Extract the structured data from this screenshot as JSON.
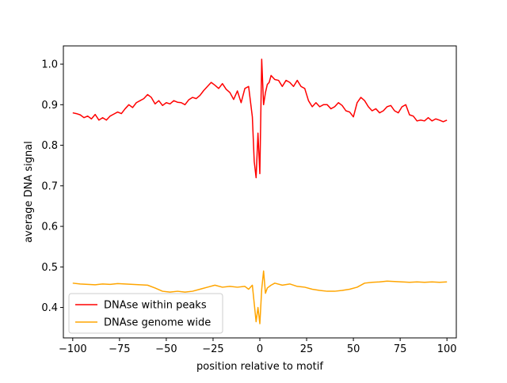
{
  "chart_data": {
    "type": "line",
    "title": "",
    "xlabel": "position relative to motif",
    "ylabel": "average DNA signal",
    "xlim": [
      -105,
      105
    ],
    "ylim": [
      0.325,
      1.045
    ],
    "xticks": [
      -100,
      -75,
      -50,
      -25,
      0,
      25,
      50,
      75,
      100
    ],
    "xtick_labels": [
      "−100",
      "−75",
      "−50",
      "−25",
      "0",
      "25",
      "50",
      "75",
      "100"
    ],
    "yticks": [
      0.4,
      0.5,
      0.6,
      0.7,
      0.8,
      0.9,
      1.0
    ],
    "ytick_labels": [
      "0.4",
      "0.5",
      "0.6",
      "0.7",
      "0.8",
      "0.9",
      "1.0"
    ],
    "grid": false,
    "legend_position": "lower-left",
    "series": [
      {
        "name": "DNAse within peaks",
        "color": "#ff0000",
        "x": [
          -100,
          -98,
          -96,
          -94,
          -92,
          -90,
          -88,
          -86,
          -84,
          -82,
          -80,
          -78,
          -76,
          -74,
          -72,
          -70,
          -68,
          -66,
          -64,
          -62,
          -60,
          -58,
          -56,
          -54,
          -52,
          -50,
          -48,
          -46,
          -44,
          -42,
          -40,
          -38,
          -36,
          -34,
          -32,
          -30,
          -28,
          -26,
          -24,
          -22,
          -20,
          -18,
          -16,
          -14,
          -12,
          -10,
          -8,
          -6,
          -4,
          -3,
          -2,
          -1,
          0,
          1,
          2,
          3,
          4,
          5,
          6,
          8,
          10,
          12,
          14,
          16,
          18,
          20,
          22,
          24,
          26,
          28,
          30,
          32,
          34,
          36,
          38,
          40,
          42,
          44,
          46,
          48,
          50,
          52,
          54,
          56,
          58,
          60,
          62,
          64,
          66,
          68,
          70,
          72,
          74,
          76,
          78,
          80,
          82,
          84,
          86,
          88,
          90,
          92,
          94,
          96,
          98,
          100
        ],
        "y": [
          0.88,
          0.878,
          0.875,
          0.868,
          0.872,
          0.865,
          0.876,
          0.862,
          0.868,
          0.862,
          0.872,
          0.877,
          0.882,
          0.878,
          0.89,
          0.9,
          0.893,
          0.905,
          0.91,
          0.915,
          0.925,
          0.918,
          0.902,
          0.91,
          0.898,
          0.905,
          0.902,
          0.91,
          0.906,
          0.905,
          0.9,
          0.912,
          0.918,
          0.915,
          0.923,
          0.935,
          0.945,
          0.955,
          0.948,
          0.94,
          0.952,
          0.938,
          0.93,
          0.913,
          0.934,
          0.905,
          0.94,
          0.945,
          0.87,
          0.76,
          0.72,
          0.83,
          0.73,
          1.012,
          0.9,
          0.93,
          0.95,
          0.955,
          0.972,
          0.962,
          0.96,
          0.945,
          0.96,
          0.955,
          0.945,
          0.96,
          0.945,
          0.94,
          0.91,
          0.895,
          0.905,
          0.895,
          0.9,
          0.9,
          0.89,
          0.895,
          0.905,
          0.898,
          0.885,
          0.882,
          0.87,
          0.905,
          0.918,
          0.91,
          0.895,
          0.885,
          0.89,
          0.88,
          0.885,
          0.895,
          0.898,
          0.885,
          0.88,
          0.895,
          0.9,
          0.875,
          0.872,
          0.86,
          0.862,
          0.86,
          0.868,
          0.86,
          0.865,
          0.862,
          0.858,
          0.862
        ]
      },
      {
        "name": "DNAse genome wide",
        "color": "#ffa500",
        "x": [
          -100,
          -96,
          -92,
          -88,
          -84,
          -80,
          -76,
          -72,
          -68,
          -64,
          -60,
          -56,
          -52,
          -48,
          -44,
          -40,
          -36,
          -32,
          -28,
          -24,
          -20,
          -16,
          -12,
          -8,
          -6,
          -4,
          -3,
          -2,
          -1,
          0,
          1,
          2,
          3,
          4,
          6,
          8,
          12,
          16,
          20,
          24,
          28,
          32,
          36,
          40,
          44,
          48,
          52,
          56,
          60,
          64,
          68,
          72,
          76,
          80,
          84,
          88,
          92,
          96,
          100
        ],
        "y": [
          0.46,
          0.458,
          0.457,
          0.456,
          0.458,
          0.457,
          0.459,
          0.458,
          0.457,
          0.456,
          0.455,
          0.448,
          0.44,
          0.438,
          0.44,
          0.438,
          0.44,
          0.445,
          0.45,
          0.455,
          0.45,
          0.452,
          0.45,
          0.452,
          0.445,
          0.455,
          0.41,
          0.365,
          0.4,
          0.36,
          0.445,
          0.49,
          0.435,
          0.448,
          0.455,
          0.46,
          0.455,
          0.458,
          0.452,
          0.45,
          0.445,
          0.442,
          0.44,
          0.44,
          0.442,
          0.445,
          0.45,
          0.46,
          0.462,
          0.463,
          0.465,
          0.464,
          0.463,
          0.462,
          0.463,
          0.462,
          0.463,
          0.462,
          0.463
        ]
      }
    ]
  }
}
